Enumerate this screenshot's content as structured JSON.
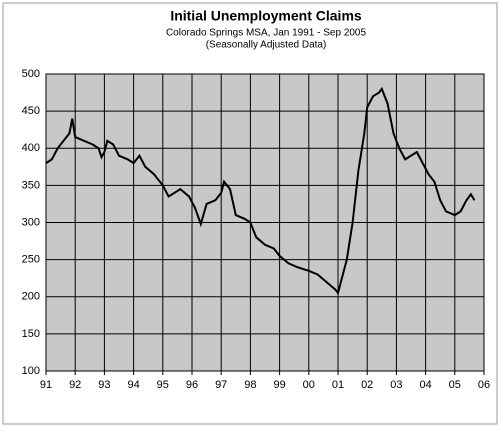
{
  "chart_data": {
    "type": "line",
    "title": "Initial Unemployment Claims",
    "subtitle": "Colorado Springs MSA, Jan 1991 - Sep 2005",
    "note": "(Seasonally Adjusted Data)",
    "series": [
      {
        "color": "#000000",
        "x": [
          1991.0,
          1991.2,
          1991.4,
          1991.6,
          1991.8,
          1991.9,
          1992.0,
          1992.3,
          1992.6,
          1992.8,
          1992.9,
          1993.0,
          1993.1,
          1993.3,
          1993.5,
          1993.8,
          1994.0,
          1994.2,
          1994.4,
          1994.7,
          1995.0,
          1995.2,
          1995.4,
          1995.6,
          1995.9,
          1996.1,
          1996.3,
          1996.5,
          1996.8,
          1997.0,
          1997.1,
          1997.3,
          1997.5,
          1997.8,
          1998.0,
          1998.2,
          1998.5,
          1998.8,
          1999.0,
          1999.3,
          1999.6,
          2000.0,
          2000.3,
          2000.6,
          2000.9,
          2001.0,
          2001.1,
          2001.3,
          2001.5,
          2001.7,
          2001.9,
          2002.0,
          2002.2,
          2002.4,
          2002.5,
          2002.7,
          2002.9,
          2003.1,
          2003.3,
          2003.5,
          2003.7,
          2003.9,
          2004.1,
          2004.3,
          2004.5,
          2004.7,
          2005.0,
          2005.2,
          2005.4,
          2005.55,
          2005.67
        ],
        "values": [
          380,
          385,
          400,
          410,
          420,
          440,
          415,
          410,
          405,
          400,
          388,
          395,
          410,
          405,
          390,
          385,
          380,
          390,
          375,
          365,
          350,
          335,
          340,
          345,
          335,
          320,
          298,
          325,
          330,
          340,
          355,
          345,
          310,
          305,
          300,
          280,
          270,
          265,
          255,
          245,
          240,
          235,
          230,
          220,
          210,
          205,
          220,
          250,
          300,
          370,
          420,
          455,
          470,
          475,
          480,
          460,
          420,
          400,
          385,
          390,
          395,
          380,
          365,
          355,
          330,
          315,
          310,
          315,
          330,
          338,
          330
        ]
      }
    ],
    "xlim": [
      1991,
      2006
    ],
    "xticks": [
      {
        "value": 1991,
        "label": "91"
      },
      {
        "value": 1992,
        "label": "92"
      },
      {
        "value": 1993,
        "label": "93"
      },
      {
        "value": 1994,
        "label": "94"
      },
      {
        "value": 1995,
        "label": "95"
      },
      {
        "value": 1996,
        "label": "96"
      },
      {
        "value": 1997,
        "label": "97"
      },
      {
        "value": 1998,
        "label": "98"
      },
      {
        "value": 1999,
        "label": "99"
      },
      {
        "value": 2000,
        "label": "00"
      },
      {
        "value": 2001,
        "label": "01"
      },
      {
        "value": 2002,
        "label": "02"
      },
      {
        "value": 2003,
        "label": "03"
      },
      {
        "value": 2004,
        "label": "04"
      },
      {
        "value": 2005,
        "label": "05"
      },
      {
        "value": 2006,
        "label": "06"
      }
    ],
    "ylim": [
      100,
      500
    ],
    "yticks": [
      100,
      150,
      200,
      250,
      300,
      350,
      400,
      450,
      500
    ],
    "grid": true,
    "background": "#c8c8c8"
  }
}
